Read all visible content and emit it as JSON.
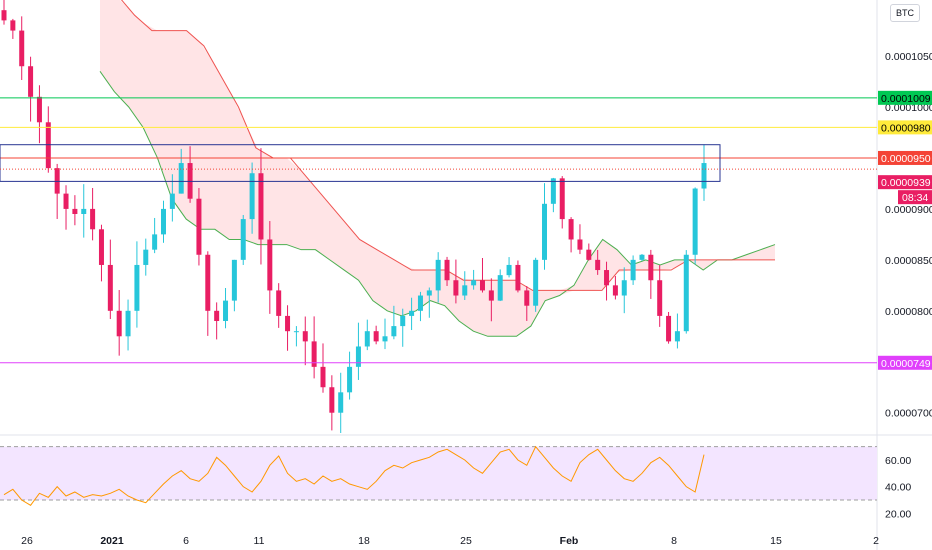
{
  "symbol_button": "BTC",
  "colors": {
    "up": "#26c6da",
    "down": "#e91e63",
    "cloud_bull": "#c8e6c9",
    "cloud_bear": "#ffcdd2",
    "span_a": "#4caf50",
    "span_b": "#ef5350",
    "rsi_line": "#ff9800",
    "rsi_band": "#f3e5ff",
    "green_line": "#00c853",
    "yellow_line": "#ffeb3b",
    "red_line": "#f44336",
    "magenta_line": "#e040fb",
    "box": "#283593"
  },
  "price_axis": {
    "ticks": [
      "0.0001050",
      "0.0001000",
      "0.0000900",
      "0.0000850",
      "0.0000800",
      "0.0000700"
    ]
  },
  "rsi_axis": {
    "ticks": [
      "60.00",
      "40.00",
      "20.00"
    ]
  },
  "x_axis": {
    "labels": [
      "26",
      "2021",
      "6",
      "11",
      "18",
      "25",
      "Feb",
      "8",
      "15",
      "2"
    ]
  },
  "tags": {
    "green": "0.0001009",
    "yellow": "0.0000980",
    "red": "0.0000950",
    "last_price": "0.0000939",
    "countdown": "08:34",
    "magenta": "0.0000749"
  },
  "chart_data": {
    "type": "candlestick",
    "ylim": [
      6.85e-05,
      0.0001105
    ],
    "x": [
      "26",
      "2021",
      "6",
      "11",
      "18",
      "25",
      "Feb",
      "8",
      "15",
      "2"
    ],
    "horizontal_levels": [
      0.0001009,
      9.8e-05,
      9.5e-05,
      7.49e-05
    ],
    "box_range": [
      9.63e-05,
      9.27e-05
    ],
    "last_price": 9.39e-05,
    "close_path": [
      0.0001085,
      0.0001075,
      0.000104,
      0.000101,
      9.85e-05,
      9.4e-05,
      9.15e-05,
      9e-05,
      8.95e-05,
      9e-05,
      8.8e-05,
      8.45e-05,
      8e-05,
      7.75e-05,
      8e-05,
      8.45e-05,
      8.6e-05,
      8.75e-05,
      9e-05,
      9.15e-05,
      9.45e-05,
      9.1e-05,
      8.55e-05,
      8e-05,
      7.9e-05,
      8.1e-05,
      8.5e-05,
      8.9e-05,
      9.35e-05,
      8.7e-05,
      8.2e-05,
      7.95e-05,
      7.8e-05,
      7.8e-05,
      7.7e-05,
      7.45e-05,
      7.25e-05,
      7e-05,
      7.2e-05,
      7.45e-05,
      7.65e-05,
      7.8e-05,
      7.7e-05,
      7.75e-05,
      7.85e-05,
      7.95e-05,
      8e-05,
      8.15e-05,
      8.2e-05,
      8.5e-05,
      8.3e-05,
      8.15e-05,
      8.25e-05,
      8.3e-05,
      8.2e-05,
      8.1e-05,
      8.35e-05,
      8.45e-05,
      8.2e-05,
      8.05e-05,
      8.5e-05,
      9.05e-05,
      9.3e-05,
      8.9e-05,
      8.7e-05,
      8.6e-05,
      8.5e-05,
      8.4e-05,
      8.25e-05,
      8.15e-05,
      8.3e-05,
      8.5e-05,
      8.55e-05,
      8.3e-05,
      7.95e-05,
      7.7e-05,
      7.8e-05,
      8.55e-05,
      9.2e-05,
      9.45e-05
    ],
    "ichimoku_span_a": [
      0.0001035,
      0.0001015,
      0.0001,
      9.8e-05,
      9.5e-05,
      9.1e-05,
      8.9e-05,
      8.8e-05,
      8.8e-05,
      8.7e-05,
      8.7e-05,
      8.65e-05,
      8.65e-05,
      8.65e-05,
      8.6e-05,
      8.6e-05,
      8.5e-05,
      8.4e-05,
      8.3e-05,
      8.1e-05,
      8e-05,
      7.95e-05,
      8e-05,
      8.1e-05,
      8.05e-05,
      7.9e-05,
      7.8e-05,
      7.75e-05,
      7.75e-05,
      7.75e-05,
      7.85e-05,
      8.1e-05,
      8.15e-05,
      8.25e-05,
      8.5e-05,
      8.7e-05,
      8.6e-05,
      8.45e-05,
      8.5e-05,
      8.45e-05,
      8.5e-05,
      8.5e-05,
      8.4e-05,
      8.5e-05,
      8.5e-05,
      8.55e-05,
      8.6e-05,
      8.65e-05
    ],
    "ichimoku_span_b": [
      0.000111,
      0.000111,
      0.000109,
      0.0001075,
      0.0001075,
      0.0001075,
      0.000106,
      0.000103,
      0.0001,
      9.6e-05,
      9.5e-05,
      9.5e-05,
      9.3e-05,
      9.1e-05,
      8.9e-05,
      8.7e-05,
      8.6e-05,
      8.5e-05,
      8.4e-05,
      8.4e-05,
      8.4e-05,
      8.3e-05,
      8.3e-05,
      8.3e-05,
      8.3e-05,
      8.2e-05,
      8.2e-05,
      8.2e-05,
      8.2e-05,
      8.2e-05,
      8.4e-05,
      8.4e-05,
      8.4e-05,
      8.4e-05,
      8.5e-05,
      8.5e-05,
      8.5e-05,
      8.5e-05,
      8.5e-05,
      8.5e-05
    ],
    "rsi": {
      "ylim": [
        15,
        75
      ],
      "band": [
        30,
        70
      ],
      "values": [
        34,
        38,
        30,
        26,
        35,
        32,
        40,
        33,
        36,
        32,
        34,
        33,
        35,
        38,
        33,
        30,
        28,
        35,
        42,
        48,
        52,
        46,
        44,
        50,
        62,
        56,
        48,
        40,
        36,
        44,
        56,
        63,
        50,
        44,
        46,
        42,
        48,
        44,
        46,
        42,
        40,
        38,
        44,
        52,
        56,
        54,
        58,
        60,
        62,
        66,
        68,
        64,
        60,
        54,
        50,
        58,
        66,
        68,
        60,
        56,
        70,
        62,
        54,
        48,
        44,
        58,
        64,
        68,
        60,
        52,
        46,
        44,
        50,
        58,
        62,
        56,
        48,
        40,
        36,
        64
      ]
    }
  }
}
